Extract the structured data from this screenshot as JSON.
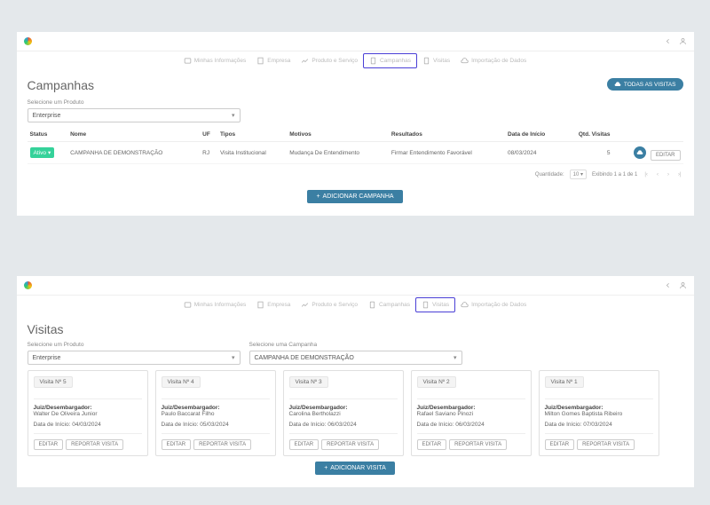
{
  "nav": {
    "items": [
      {
        "label": "Minhas Informações",
        "icon": "id"
      },
      {
        "label": "Empresa",
        "icon": "building"
      },
      {
        "label": "Produto e Serviço",
        "icon": "chart"
      },
      {
        "label": "Campanhas",
        "icon": "clipboard"
      },
      {
        "label": "Visitas",
        "icon": "clipboard"
      },
      {
        "label": "Importação de Dados",
        "icon": "cloud"
      }
    ]
  },
  "campanhas": {
    "title": "Campanhas",
    "todas_visitas_label": "TODAS AS VISITAS",
    "product_label": "Selecione um Produto",
    "product_value": "Enterprise",
    "columns": [
      "Status",
      "Nome",
      "UF",
      "Tipos",
      "Motivos",
      "Resultados",
      "Data de Início",
      "Qtd. Visitas"
    ],
    "row": {
      "status": "Ativo",
      "nome": "CAMPANHA DE DEMONSTRAÇÃO",
      "uf": "RJ",
      "tipos": "Visita Institucional",
      "motivos": "Mudança De Entendimento",
      "resultados": "Firmar Entendimento Favorável",
      "data_inicio": "08/03/2024",
      "qtd_visitas": "5",
      "editar": "EDITAR"
    },
    "footer": {
      "quantidade_label": "Quantidade:",
      "quantidade_value": "10",
      "exibindo": "Exibindo 1 a 1 de 1"
    },
    "add_btn": "ADICIONAR CAMPANHA"
  },
  "visitas": {
    "title": "Visitas",
    "product_label": "Selecione um Produto",
    "product_value": "Enterprise",
    "campaign_label": "Selecione uma Campanha",
    "campaign_value": "CAMPANHA DE DEMONSTRAÇÃO",
    "cards": [
      {
        "tag": "Visita Nº 5",
        "name": "Walter De Oliveira Junior",
        "date": "04/03/2024"
      },
      {
        "tag": "Visita Nº 4",
        "name": "Paulo Baccarat Filho",
        "date": "05/03/2024"
      },
      {
        "tag": "Visita Nº 3",
        "name": "Carolina Bertholazzi",
        "date": "06/03/2024"
      },
      {
        "tag": "Visita Nº 2",
        "name": "Rafael Saviano Pinozi",
        "date": "06/03/2024"
      },
      {
        "tag": "Visita Nº 1",
        "name": "Milton Gomes Baptista Ribeiro",
        "date": "07/03/2024"
      }
    ],
    "card_labels": {
      "juiz": "Juiz/Desembargador:",
      "data": "Data de Início:",
      "editar": "EDITAR",
      "reportar": "REPORTAR VISITA"
    },
    "add_btn": "ADICIONAR VISITA"
  }
}
